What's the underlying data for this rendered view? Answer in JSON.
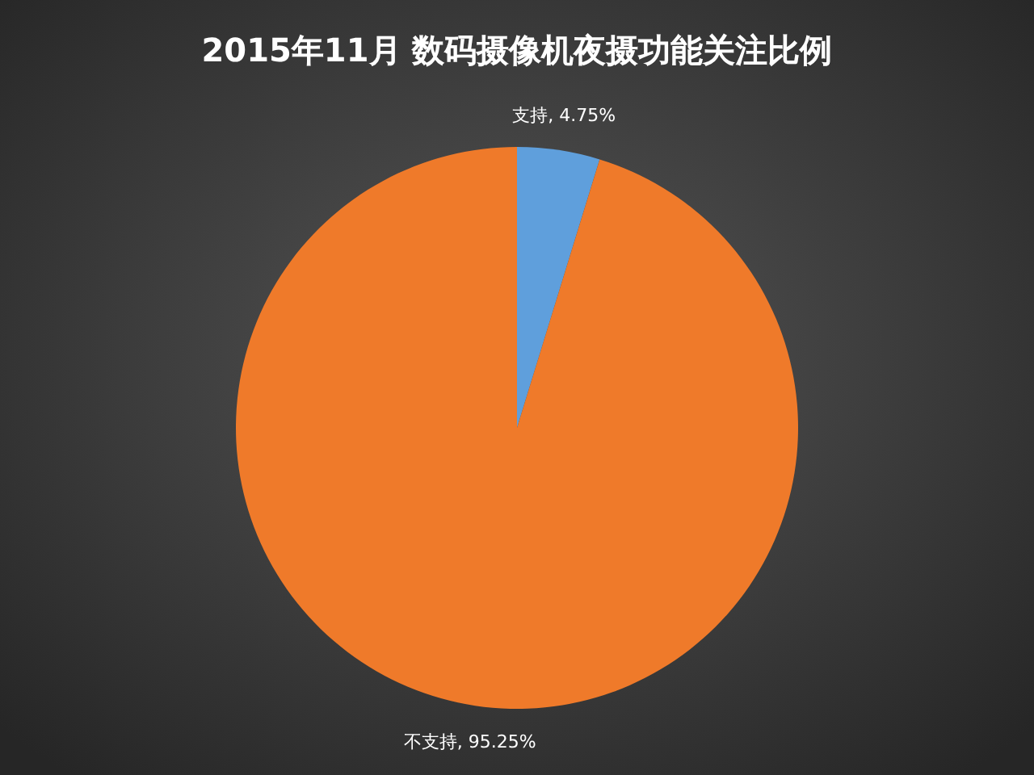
{
  "chart_data": {
    "type": "pie",
    "title": "2015年11月  数码摄像机夜摄功能关注比例",
    "categories": [
      "支持",
      "不支持"
    ],
    "values": [
      4.75,
      95.25
    ],
    "value_labels": [
      ", 4.75%",
      ", 95.25%"
    ],
    "colors": [
      "#5f9fdc",
      "#ef7a2a"
    ]
  }
}
